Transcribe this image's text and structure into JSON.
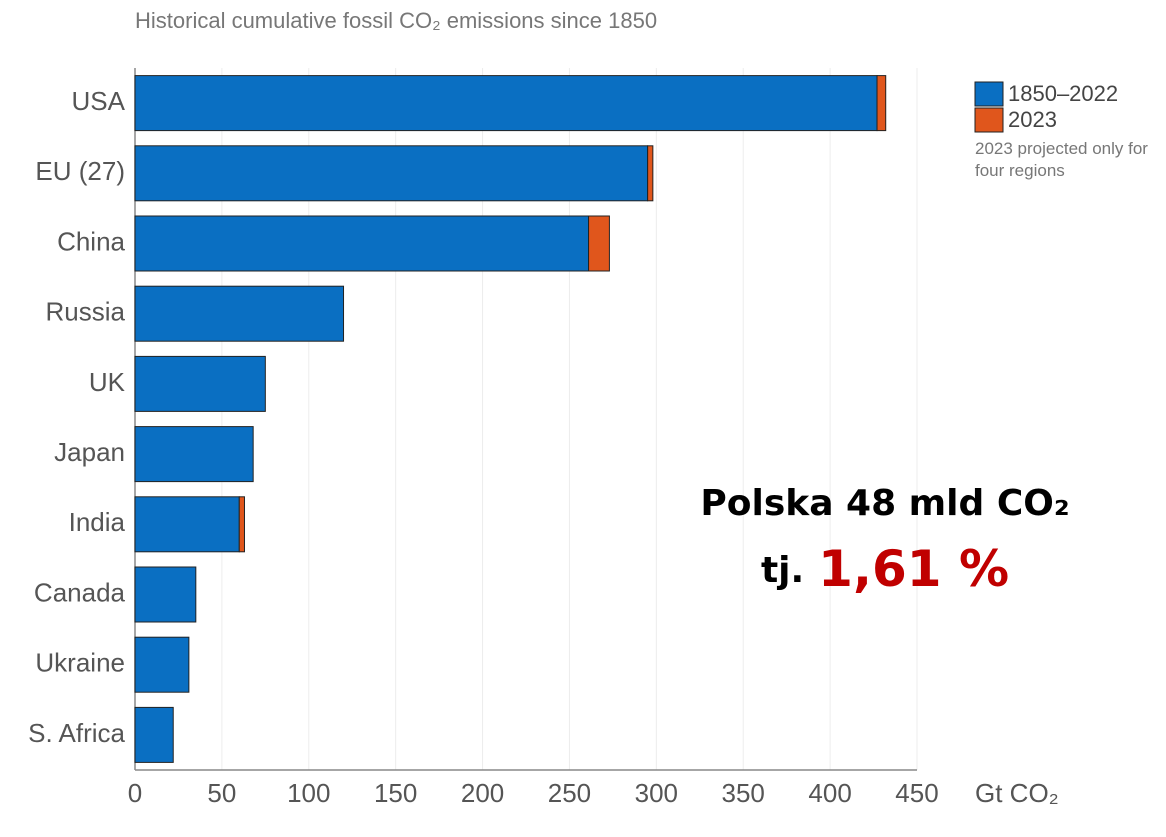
{
  "chart_data": {
    "type": "stacked-barh",
    "title": "Historical cumulative fossil CO₂ emissions since 1850",
    "x_label": "Gt CO₂",
    "categories": [
      "USA",
      "EU (27)",
      "China",
      "Russia",
      "UK",
      "Japan",
      "India",
      "Canada",
      "Ukraine",
      "S. Africa"
    ],
    "series": [
      {
        "name": "1850–2022",
        "color": "#0a6fc2",
        "values": [
          427,
          295,
          261,
          120,
          75,
          68,
          60,
          35,
          31,
          22
        ]
      },
      {
        "name": "2023",
        "color": "#e0561c",
        "values": [
          5,
          3,
          12,
          null,
          null,
          null,
          3,
          null,
          null,
          null
        ]
      }
    ],
    "legend_note": "2023 projected only for four regions",
    "xlim": [
      0,
      450
    ],
    "xticks": [
      0,
      50,
      100,
      150,
      200,
      250,
      300,
      350,
      400,
      450
    ],
    "grid": true,
    "annotations": [
      "Polska 48 mld CO₂",
      "tj.",
      "1,61 %"
    ]
  }
}
